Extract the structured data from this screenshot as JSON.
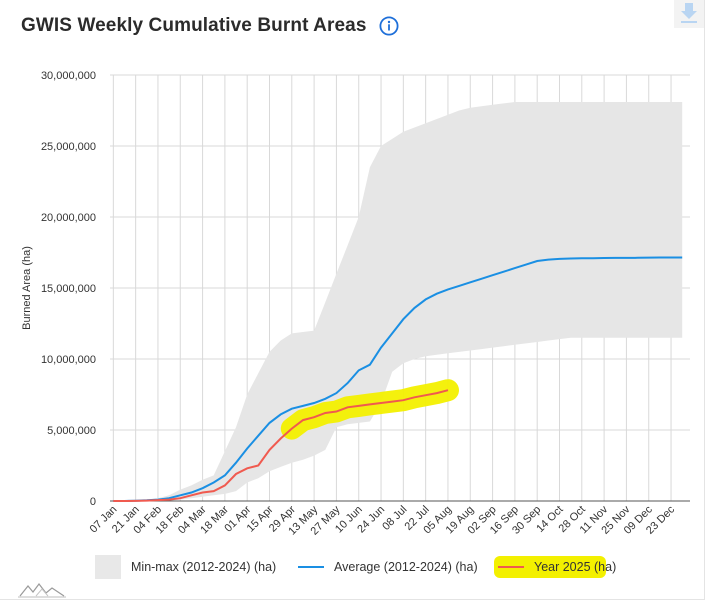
{
  "header": {
    "title": "GWIS Weekly Cumulative Burnt Areas",
    "info_icon": "info-circle-icon",
    "download_icon": "download-arrow-icon"
  },
  "colors": {
    "average": "#1a8fe3",
    "year": "#f05a4f",
    "band": "#e6e6e6",
    "highlight": "#f3f000",
    "info": "#1e6fd9"
  },
  "legend": {
    "minmax": "Min-max (2012-2024) (ha)",
    "average": "Average (2012-2024) (ha)",
    "year": "Year 2025 (ha)"
  },
  "chart_data": {
    "type": "area",
    "ylabel": "Burned Area (ha)",
    "ylim": [
      0,
      30000000
    ],
    "yticks": [
      0,
      5000000,
      10000000,
      15000000,
      20000000,
      25000000,
      30000000
    ],
    "ytick_labels": [
      "0",
      "5,000,000",
      "10,000,000",
      "15,000,000",
      "20,000,000",
      "25,000,000",
      "30,000,000"
    ],
    "x_tick_labels": [
      "07 Jan",
      "21 Jan",
      "04 Feb",
      "18 Feb",
      "04 Mar",
      "18 Mar",
      "01 Apr",
      "15 Apr",
      "29 Apr",
      "13 May",
      "27 May",
      "10 Jun",
      "24 Jun",
      "08 Jul",
      "22 Jul",
      "05 Aug",
      "19 Aug",
      "02 Sep",
      "16 Sep",
      "30 Sep",
      "14 Oct",
      "28 Oct",
      "11 Nov",
      "25 Nov",
      "09 Dec",
      "23 Dec"
    ],
    "grid": true,
    "legend_position": "bottom",
    "series": [
      {
        "key": "minmax",
        "kind": "band",
        "min": [
          0,
          0,
          0,
          0,
          0,
          0,
          100000,
          200000,
          300000,
          400000,
          500000,
          700000,
          1300000,
          1600000,
          2100000,
          2400000,
          2700000,
          2900000,
          3200000,
          3600000,
          5200000,
          5400000,
          5500000,
          5600000,
          6900000,
          9100000,
          9700000,
          10000000,
          10200000,
          10300000,
          10400000,
          10500000,
          10600000,
          10700000,
          10800000,
          10900000,
          11000000,
          11100000,
          11200000,
          11300000,
          11400000,
          11500000,
          11500000,
          11500000,
          11500000,
          11500000,
          11500000,
          11500000,
          11500000,
          11500000,
          11500000,
          11500000
        ],
        "max": [
          0,
          0,
          0,
          100000,
          200000,
          400000,
          800000,
          1100000,
          1500000,
          1800000,
          3500000,
          5200000,
          7500000,
          9000000,
          10500000,
          11300000,
          11800000,
          11900000,
          12000000,
          14000000,
          16000000,
          18000000,
          20000000,
          23500000,
          25000000,
          25500000,
          26000000,
          26300000,
          26600000,
          26900000,
          27200000,
          27500000,
          27700000,
          27800000,
          27900000,
          28000000,
          28100000,
          28100000,
          28100000,
          28100000,
          28100000,
          28100000,
          28100000,
          28100000,
          28100000,
          28100000,
          28100000,
          28100000,
          28100000,
          28100000,
          28100000,
          28100000
        ]
      },
      {
        "key": "average",
        "kind": "line",
        "values": [
          0,
          0,
          20000,
          50000,
          100000,
          200000,
          400000,
          600000,
          900000,
          1300000,
          1800000,
          2700000,
          3700000,
          4600000,
          5500000,
          6100000,
          6500000,
          6700000,
          6900000,
          7200000,
          7600000,
          8300000,
          9200000,
          9600000,
          10800000,
          11800000,
          12800000,
          13600000,
          14200000,
          14600000,
          14900000,
          15150000,
          15400000,
          15650000,
          15900000,
          16150000,
          16400000,
          16650000,
          16900000,
          17000000,
          17050000,
          17080000,
          17100000,
          17100000,
          17110000,
          17120000,
          17120000,
          17130000,
          17140000,
          17150000,
          17150000,
          17150000
        ]
      },
      {
        "key": "year",
        "kind": "line",
        "values": [
          0,
          0,
          10000,
          30000,
          60000,
          100000,
          200000,
          400000,
          600000,
          700000,
          1100000,
          1900000,
          2300000,
          2500000,
          3600000,
          4400000,
          5100000,
          5700000,
          5900000,
          6200000,
          6300000,
          6600000,
          6700000,
          6800000,
          6900000,
          7000000,
          7100000,
          7300000,
          7450000,
          7600000,
          7800000
        ]
      }
    ],
    "highlight_span": [
      16,
      30
    ]
  }
}
